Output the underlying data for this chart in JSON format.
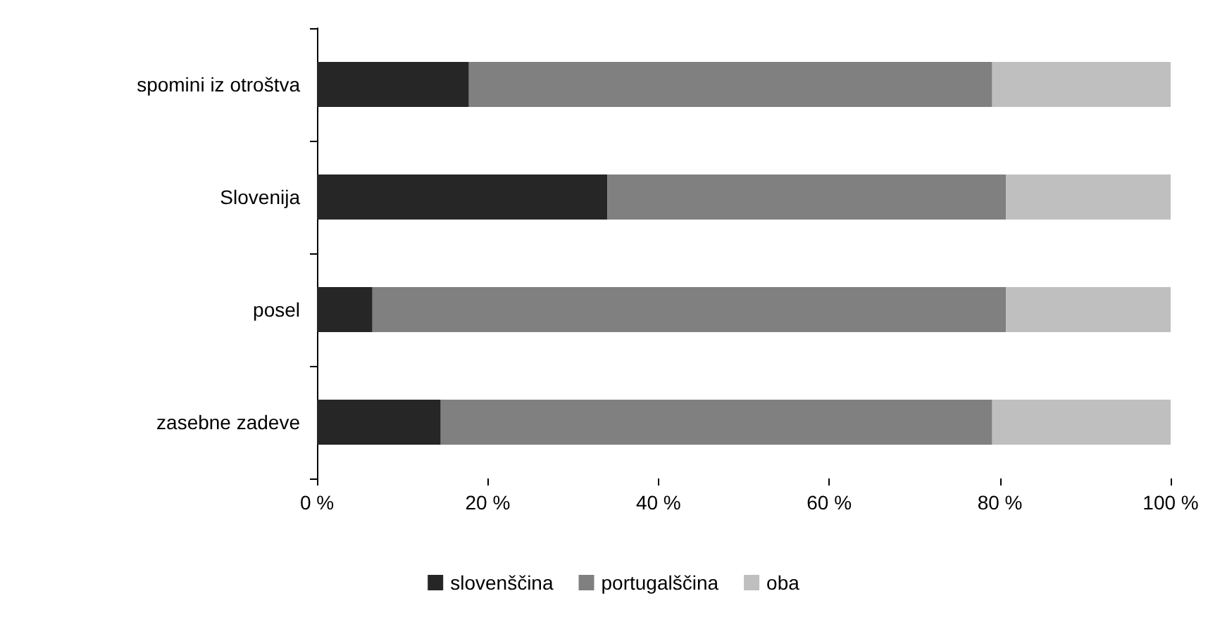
{
  "chart_data": {
    "type": "bar",
    "orientation": "horizontal",
    "stacked": true,
    "categories": [
      "spomini iz otroštva",
      "Slovenija",
      "posel",
      "zasebne zadeve"
    ],
    "series": [
      {
        "name": "slovenščina",
        "color": "#262626",
        "values": [
          17.8,
          34,
          6.5,
          14.5
        ]
      },
      {
        "name": "portugalščina",
        "color": "#808080",
        "values": [
          61.3,
          46.7,
          74.2,
          64.6
        ]
      },
      {
        "name": "oba",
        "color": "#bfbfbf",
        "values": [
          20.9,
          19.3,
          19.3,
          20.9
        ]
      }
    ],
    "xlim": [
      0,
      100
    ],
    "xticks": [
      {
        "value": 0,
        "label": "0 %"
      },
      {
        "value": 20,
        "label": "20 %"
      },
      {
        "value": 40,
        "label": "40 %"
      },
      {
        "value": 60,
        "label": "60 %"
      },
      {
        "value": 80,
        "label": "80 %"
      },
      {
        "value": 100,
        "label": "100 %"
      }
    ],
    "grid": false,
    "legend": "bottom"
  }
}
